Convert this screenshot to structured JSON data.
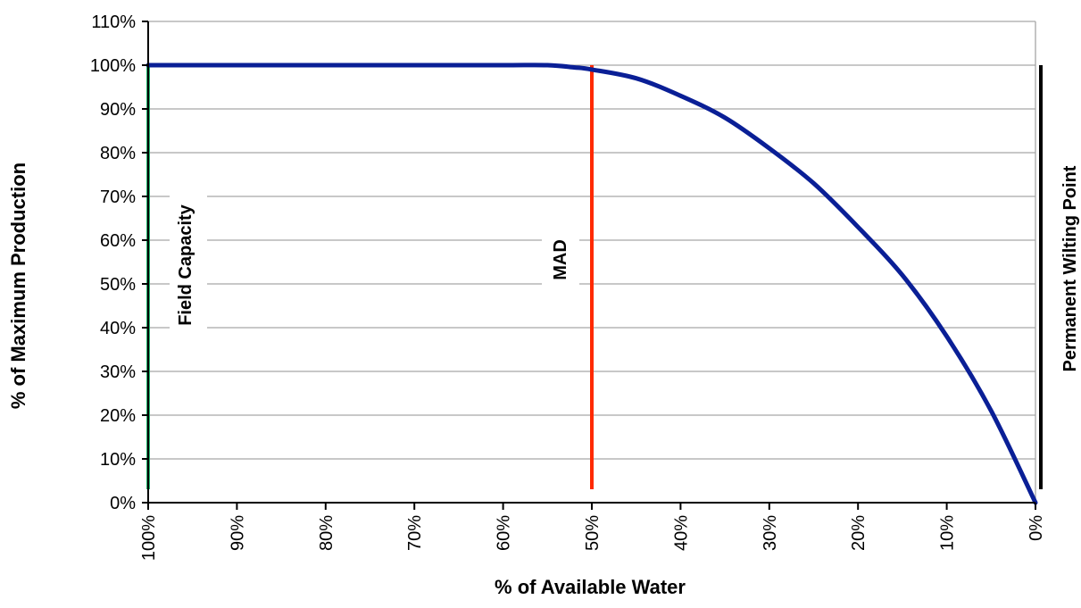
{
  "chart_data": {
    "type": "line",
    "xlabel": "% of Available Water",
    "ylabel": "% of Maximum Production",
    "x_reversed": true,
    "xlim": [
      100,
      0
    ],
    "ylim": [
      0,
      110
    ],
    "x_ticks": [
      "100%",
      "90%",
      "80%",
      "70%",
      "60%",
      "50%",
      "40%",
      "30%",
      "20%",
      "10%",
      "0%"
    ],
    "y_ticks": [
      "0%",
      "10%",
      "20%",
      "30%",
      "40%",
      "50%",
      "60%",
      "70%",
      "80%",
      "90%",
      "100%",
      "110%"
    ],
    "grid": "horizontal",
    "series": [
      {
        "color": "#0a1f96",
        "x": [
          100,
          95,
          90,
          80,
          70,
          60,
          55,
          52,
          50,
          45,
          40,
          35,
          30,
          25,
          20,
          15,
          10,
          5,
          0
        ],
        "y": [
          100,
          100,
          100,
          100,
          100,
          100,
          100,
          99.5,
          99,
          97,
          93,
          88,
          81,
          73,
          63,
          52,
          38,
          21,
          0
        ]
      }
    ],
    "markers": [
      {
        "label": "Field Capacity",
        "x": 100,
        "color": "#1fb36b"
      },
      {
        "label": "MAD",
        "x": 50,
        "color": "#ff2a00"
      },
      {
        "label": "Permanent Wilting Point",
        "x": 0,
        "color": "#000000"
      }
    ]
  }
}
